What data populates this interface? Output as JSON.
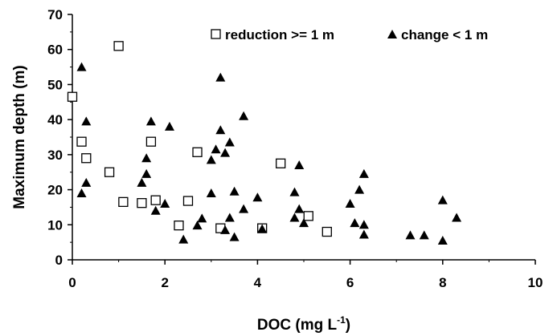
{
  "chart_data": {
    "type": "scatter",
    "title": "",
    "xlabel": "DOC (mg L",
    "xlabel_sup": "-1",
    "xlabel_end": ")",
    "ylabel": "Maximum depth (m)",
    "xlim": [
      0,
      10
    ],
    "ylim": [
      0,
      70
    ],
    "x_ticks": [
      0,
      2,
      4,
      6,
      8,
      10
    ],
    "y_ticks": [
      0,
      10,
      20,
      30,
      40,
      50,
      60,
      70
    ],
    "grid": false,
    "legend_position": "top-right",
    "series": [
      {
        "name": "reduction >= 1 m",
        "marker": "open-square",
        "color": "#000000",
        "points": [
          [
            0.0,
            46.5
          ],
          [
            0.2,
            33.7
          ],
          [
            0.3,
            29.0
          ],
          [
            0.8,
            25.0
          ],
          [
            1.0,
            61.0
          ],
          [
            1.1,
            16.5
          ],
          [
            1.5,
            16.2
          ],
          [
            1.7,
            33.7
          ],
          [
            1.8,
            17.0
          ],
          [
            2.3,
            9.8
          ],
          [
            2.5,
            16.8
          ],
          [
            2.7,
            30.7
          ],
          [
            3.2,
            9.0
          ],
          [
            4.1,
            9.0
          ],
          [
            4.5,
            27.5
          ],
          [
            5.1,
            12.5
          ],
          [
            5.5,
            8.0
          ]
        ]
      },
      {
        "name": "change < 1 m",
        "marker": "filled-triangle",
        "color": "#000000",
        "points": [
          [
            0.2,
            55.0
          ],
          [
            0.3,
            39.5
          ],
          [
            0.2,
            19.0
          ],
          [
            0.3,
            22.0
          ],
          [
            1.5,
            22.0
          ],
          [
            1.6,
            29.0
          ],
          [
            1.6,
            24.5
          ],
          [
            1.7,
            39.5
          ],
          [
            1.8,
            14.0
          ],
          [
            2.0,
            16.0
          ],
          [
            2.1,
            38.0
          ],
          [
            2.4,
            5.8
          ],
          [
            2.7,
            9.8
          ],
          [
            2.8,
            11.8
          ],
          [
            3.0,
            28.5
          ],
          [
            3.0,
            19.0
          ],
          [
            3.1,
            31.5
          ],
          [
            3.2,
            52.0
          ],
          [
            3.2,
            37.0
          ],
          [
            3.3,
            30.5
          ],
          [
            3.3,
            8.5
          ],
          [
            3.4,
            33.5
          ],
          [
            3.4,
            12.0
          ],
          [
            3.5,
            19.5
          ],
          [
            3.5,
            6.5
          ],
          [
            3.7,
            14.5
          ],
          [
            3.7,
            41.0
          ],
          [
            4.0,
            17.8
          ],
          [
            4.1,
            8.8
          ],
          [
            4.8,
            19.3
          ],
          [
            4.8,
            12.0
          ],
          [
            4.9,
            27.0
          ],
          [
            4.9,
            14.5
          ],
          [
            5.0,
            10.5
          ],
          [
            6.0,
            16.0
          ],
          [
            6.1,
            10.5
          ],
          [
            6.2,
            20.0
          ],
          [
            6.3,
            24.5
          ],
          [
            6.3,
            10.0
          ],
          [
            6.3,
            7.2
          ],
          [
            7.3,
            7.0
          ],
          [
            7.6,
            7.0
          ],
          [
            8.0,
            5.5
          ],
          [
            8.0,
            17.0
          ],
          [
            8.3,
            12.0
          ]
        ]
      }
    ]
  }
}
